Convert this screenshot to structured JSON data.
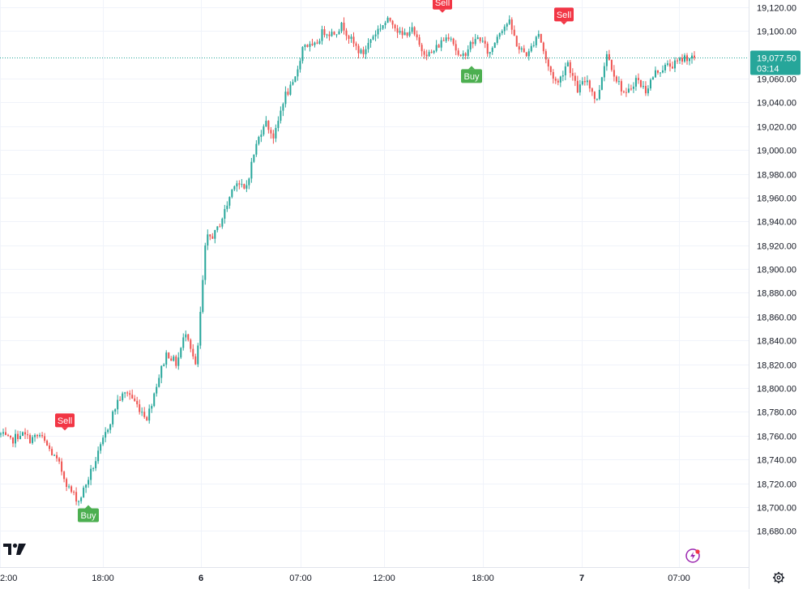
{
  "chart_data": {
    "type": "candlestick",
    "ylim": [
      18670,
      19124
    ],
    "y_ticks": [
      {
        "value": 19120,
        "label": "19,120.00"
      },
      {
        "value": 19100,
        "label": "19,100.00"
      },
      {
        "value": 19060,
        "label": "19,060.00"
      },
      {
        "value": 19040,
        "label": "19,040.00"
      },
      {
        "value": 19020,
        "label": "19,020.00"
      },
      {
        "value": 19000,
        "label": "19,000.00"
      },
      {
        "value": 18980,
        "label": "18,980.00"
      },
      {
        "value": 18960,
        "label": "18,960.00"
      },
      {
        "value": 18940,
        "label": "18,940.00"
      },
      {
        "value": 18920,
        "label": "18,920.00"
      },
      {
        "value": 18900,
        "label": "18,900.00"
      },
      {
        "value": 18880,
        "label": "18,880.00"
      },
      {
        "value": 18860,
        "label": "18,860.00"
      },
      {
        "value": 18840,
        "label": "18,840.00"
      },
      {
        "value": 18820,
        "label": "18,820.00"
      },
      {
        "value": 18800,
        "label": "18,800.00"
      },
      {
        "value": 18780,
        "label": "18,780.00"
      },
      {
        "value": 18760,
        "label": "18,760.00"
      },
      {
        "value": 18740,
        "label": "18,740.00"
      },
      {
        "value": 18720,
        "label": "18,720.00"
      },
      {
        "value": 18700,
        "label": "18,700.00"
      },
      {
        "value": 18680,
        "label": "18,680.00"
      }
    ],
    "x_ticks": [
      {
        "label": "2:00",
        "bold": false
      },
      {
        "label": "18:00",
        "bold": false
      },
      {
        "label": "6",
        "bold": true
      },
      {
        "label": "07:00",
        "bold": false
      },
      {
        "label": "12:00",
        "bold": false
      },
      {
        "label": "18:00",
        "bold": false
      },
      {
        "label": "7",
        "bold": true
      },
      {
        "label": "07:00",
        "bold": false
      }
    ],
    "current_price": {
      "value": 19077.5,
      "label": "19,077.50",
      "countdown": "03:14"
    },
    "colors": {
      "up": "#26a69a",
      "down": "#ef5350",
      "buy": "#4caf50",
      "sell": "#f23645",
      "price_label": "#26a69a",
      "grid": "#f0f3fa"
    },
    "signals": [
      {
        "label": "Sell",
        "type": "sell",
        "price": 18763
      },
      {
        "label": "Buy",
        "type": "buy",
        "price": 18703
      },
      {
        "label": "Sell",
        "type": "sell",
        "price": 19114
      },
      {
        "label": "Buy",
        "type": "buy",
        "price": 19072
      },
      {
        "label": "Sell",
        "type": "sell",
        "price": 19104
      }
    ],
    "path": [
      18761,
      18755,
      18762,
      18757,
      18760,
      18748,
      18735,
      18715,
      18705,
      18725,
      18745,
      18768,
      18790,
      18797,
      18785,
      18775,
      18805,
      18830,
      18820,
      18850,
      18815,
      18925,
      18930,
      18950,
      18975,
      18965,
      19000,
      19025,
      19010,
      19045,
      19055,
      19090,
      19085,
      19100,
      19098,
      19105,
      19090,
      19080,
      19095,
      19105,
      19110,
      19095,
      19102,
      19085,
      19080,
      19090,
      19098,
      19075,
      19088,
      19095,
      19080,
      19100,
      19108,
      19085,
      19080,
      19100,
      19070,
      19055,
      19075,
      19050,
      19060,
      19040,
      19082,
      19060,
      19045,
      19060,
      19050,
      19065,
      19070,
      19072,
      19078,
      19077.5
    ]
  },
  "logo_text": "TV",
  "settings_icon": "gear-icon",
  "lightning_icon": "lightning-icon"
}
